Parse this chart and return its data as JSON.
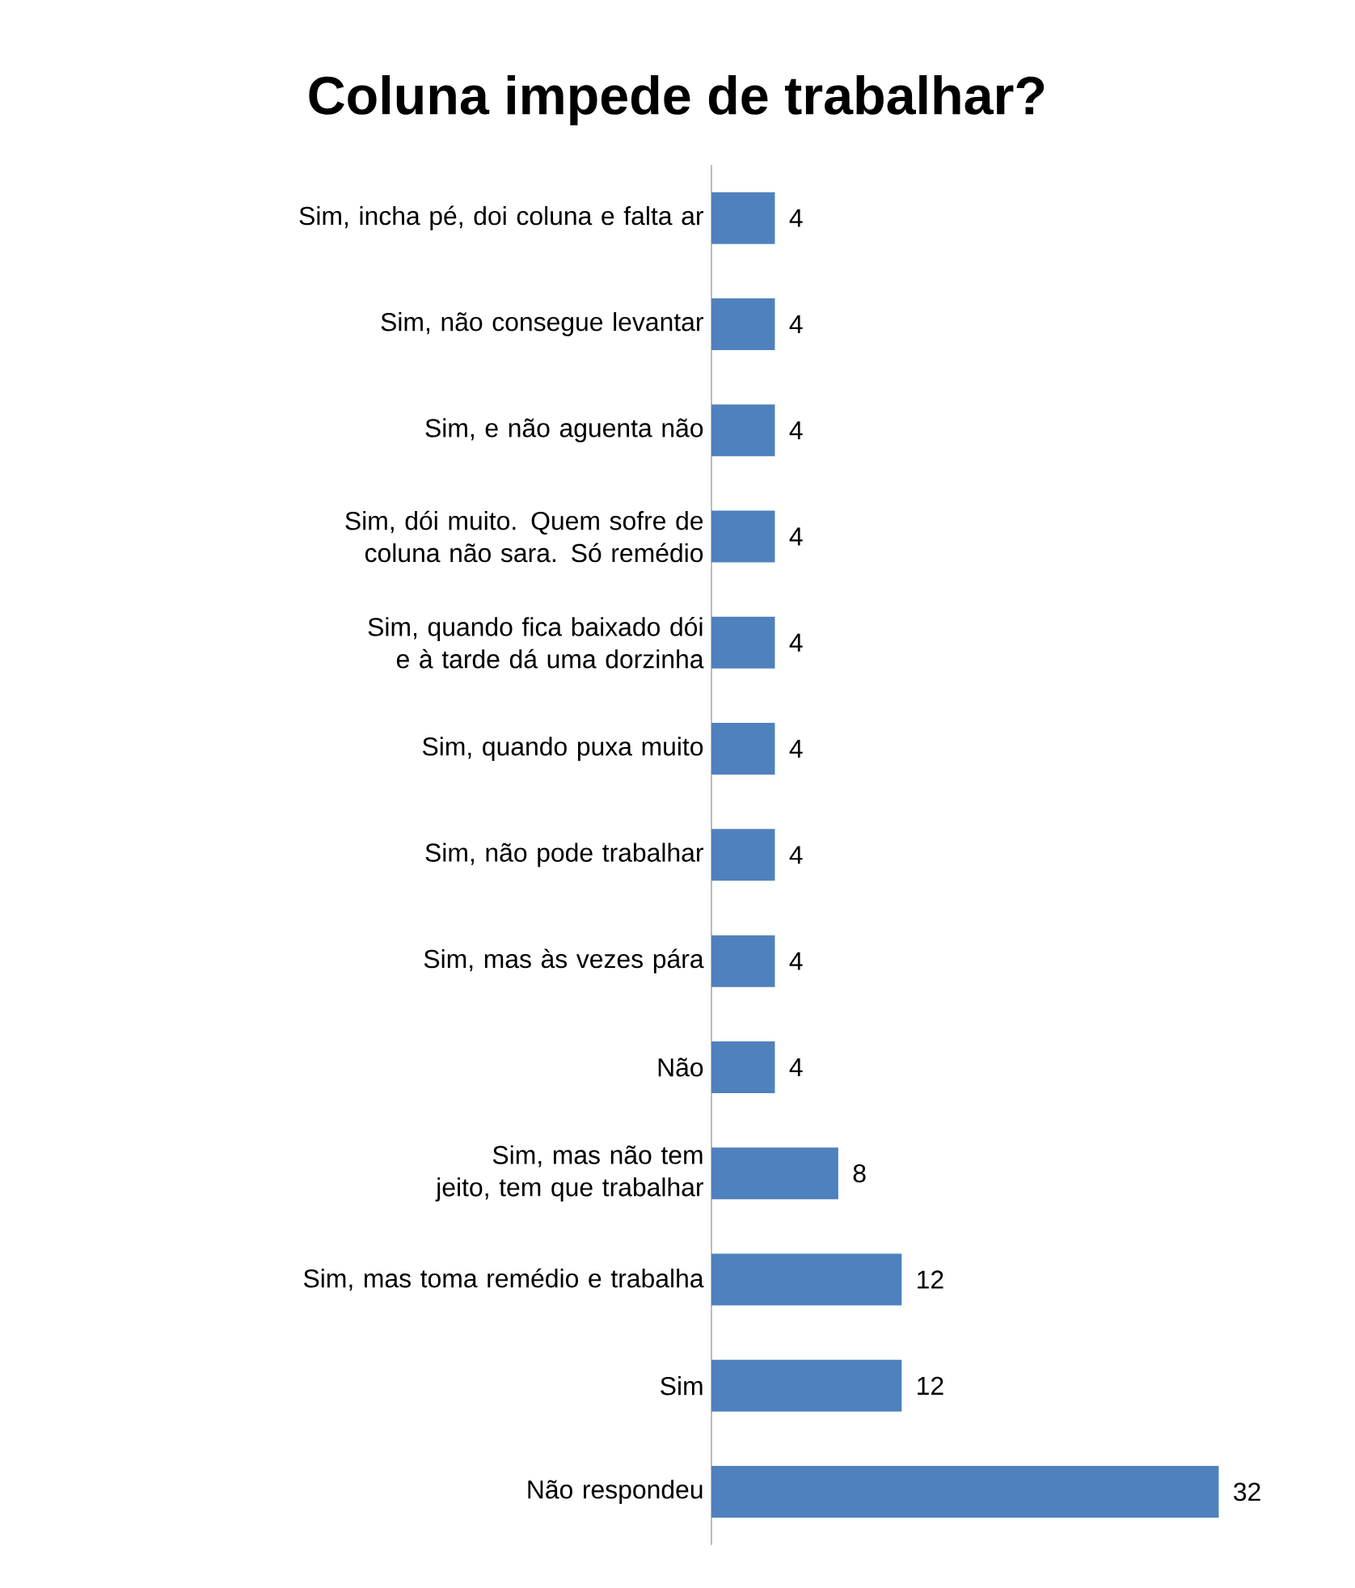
{
  "chart_data": {
    "type": "bar",
    "orientation": "horizontal",
    "title": "Coluna impede de trabalhar?",
    "categories": [
      "Sim, incha pé, doi coluna e falta ar",
      "Sim, não consegue levantar",
      "Sim, e não aguenta não",
      "Sim, dói muito. Quem sofre de coluna não sara. Só remédio",
      "Sim, quando fica baixado dói e à tarde dá uma dorzinha",
      "Sim, quando puxa muito",
      "Sim, não pode trabalhar",
      "Sim, mas às vezes pára",
      "Não",
      "Sim, mas não tem jeito, tem que trabalhar",
      "Sim, mas toma remédio e trabalha",
      "Sim",
      "Não respondeu"
    ],
    "values": [
      4,
      4,
      4,
      4,
      4,
      4,
      4,
      4,
      4,
      8,
      12,
      12,
      32
    ],
    "color": "#4f81bd",
    "data_labels": true
  }
}
